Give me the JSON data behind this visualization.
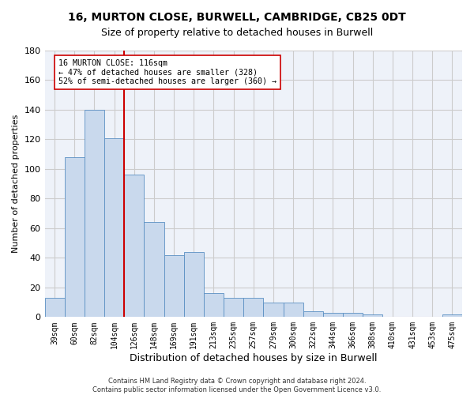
{
  "title_line1": "16, MURTON CLOSE, BURWELL, CAMBRIDGE, CB25 0DT",
  "title_line2": "Size of property relative to detached houses in Burwell",
  "xlabel": "Distribution of detached houses by size in Burwell",
  "ylabel": "Number of detached properties",
  "categories": [
    "39sqm",
    "60sqm",
    "82sqm",
    "104sqm",
    "126sqm",
    "148sqm",
    "169sqm",
    "191sqm",
    "213sqm",
    "235sqm",
    "257sqm",
    "279sqm",
    "300sqm",
    "322sqm",
    "344sqm",
    "366sqm",
    "388sqm",
    "410sqm",
    "431sqm",
    "453sqm",
    "475sqm"
  ],
  "values": [
    13,
    108,
    140,
    121,
    96,
    64,
    42,
    44,
    16,
    13,
    13,
    10,
    10,
    4,
    3,
    3,
    2,
    0,
    0,
    0,
    2
  ],
  "bar_color": "#c9d9ed",
  "bar_edge_color": "#5a8fc3",
  "vline_x": 3.5,
  "vline_color": "#cc0000",
  "annotation_text": "16 MURTON CLOSE: 116sqm\n← 47% of detached houses are smaller (328)\n52% of semi-detached houses are larger (360) →",
  "ylim": [
    0,
    180
  ],
  "yticks": [
    0,
    20,
    40,
    60,
    80,
    100,
    120,
    140,
    160,
    180
  ],
  "grid_color": "#cccccc",
  "background_color": "#eef2f9",
  "footer_line1": "Contains HM Land Registry data © Crown copyright and database right 2024.",
  "footer_line2": "Contains public sector information licensed under the Open Government Licence v3.0."
}
